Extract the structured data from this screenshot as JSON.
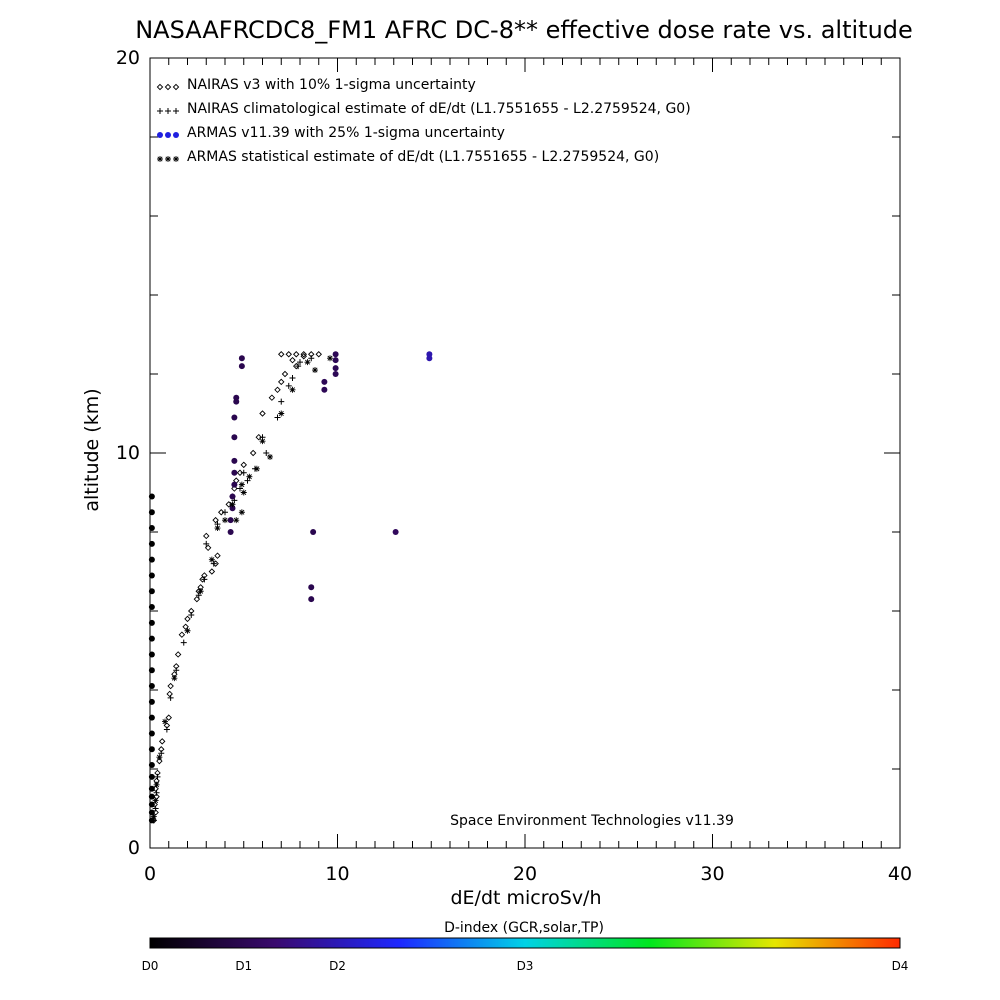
{
  "chart_data": {
    "type": "scatter",
    "title": "NASAAFRCDC8_FM1 AFRC DC-8** effective dose rate vs. altitude",
    "xlabel": "dE/dt microSv/h",
    "ylabel": "altitude (km)",
    "xlim": [
      0,
      40
    ],
    "ylim": [
      0,
      20
    ],
    "xticks": [
      "0",
      "10",
      "20",
      "30",
      "40"
    ],
    "yticks": [
      "0",
      "10",
      "20"
    ],
    "grid": false,
    "legend_position": "top-left",
    "credit": "Space Environment Technologies v11.39",
    "colorbar": {
      "title": "D-index (GCR,solar,TP)",
      "labels": [
        {
          "text": "D0",
          "pos": 0
        },
        {
          "text": "D1",
          "pos": 0.125
        },
        {
          "text": "D2",
          "pos": 0.25
        },
        {
          "text": "D3",
          "pos": 0.5
        },
        {
          "text": "D4",
          "pos": 1
        }
      ],
      "stops": [
        "#000000",
        "#3a0a6e",
        "#1e28ff",
        "#00d2e6",
        "#00e61e",
        "#e6e600",
        "#ff2a00"
      ]
    },
    "series": [
      {
        "name": "NAIRAS v3 with 10% 1-sigma uncertainty",
        "marker": "diamond",
        "color": "#000000",
        "points": [
          [
            0.2,
            0.7
          ],
          [
            0.3,
            0.9
          ],
          [
            0.25,
            1.1
          ],
          [
            0.35,
            1.3
          ],
          [
            0.3,
            1.5
          ],
          [
            0.35,
            1.7
          ],
          [
            0.4,
            1.9
          ],
          [
            0.5,
            2.2
          ],
          [
            0.6,
            2.5
          ],
          [
            0.65,
            2.7
          ],
          [
            0.9,
            3.1
          ],
          [
            1.0,
            3.3
          ],
          [
            1.05,
            3.9
          ],
          [
            1.1,
            4.1
          ],
          [
            1.3,
            4.4
          ],
          [
            1.4,
            4.6
          ],
          [
            1.5,
            4.9
          ],
          [
            1.7,
            5.4
          ],
          [
            1.9,
            5.6
          ],
          [
            2.0,
            5.8
          ],
          [
            2.2,
            6.0
          ],
          [
            2.5,
            6.3
          ],
          [
            2.6,
            6.5
          ],
          [
            2.7,
            6.6
          ],
          [
            2.8,
            6.8
          ],
          [
            2.9,
            6.9
          ],
          [
            3.3,
            7.0
          ],
          [
            3.5,
            7.2
          ],
          [
            3.6,
            7.4
          ],
          [
            3.1,
            7.6
          ],
          [
            3.0,
            7.9
          ],
          [
            3.5,
            8.3
          ],
          [
            3.8,
            8.5
          ],
          [
            4.2,
            8.7
          ],
          [
            4.4,
            8.9
          ],
          [
            4.5,
            9.1
          ],
          [
            4.6,
            9.3
          ],
          [
            4.8,
            9.5
          ],
          [
            5.0,
            9.7
          ],
          [
            5.5,
            10.0
          ],
          [
            5.8,
            10.4
          ],
          [
            6.0,
            11.0
          ],
          [
            6.5,
            11.4
          ],
          [
            6.8,
            11.6
          ],
          [
            7.0,
            11.8
          ],
          [
            7.2,
            12.0
          ],
          [
            7.8,
            12.2
          ],
          [
            7.6,
            12.35
          ],
          [
            8.2,
            12.45
          ],
          [
            7.0,
            12.5
          ],
          [
            7.4,
            12.5
          ],
          [
            7.8,
            12.5
          ],
          [
            8.2,
            12.5
          ],
          [
            8.6,
            12.5
          ],
          [
            9.0,
            12.5
          ]
        ]
      },
      {
        "name": "NAIRAS climatological estimate of dE/dt (L1.7551655 - L2.2759524, G0)",
        "marker": "plus",
        "color": "#000000",
        "points": [
          [
            0.2,
            0.7
          ],
          [
            0.3,
            1.0
          ],
          [
            0.35,
            1.4
          ],
          [
            0.4,
            1.8
          ],
          [
            0.6,
            2.4
          ],
          [
            0.9,
            3.0
          ],
          [
            1.1,
            3.8
          ],
          [
            1.4,
            4.5
          ],
          [
            1.8,
            5.2
          ],
          [
            2.2,
            5.9
          ],
          [
            2.6,
            6.4
          ],
          [
            2.9,
            6.8
          ],
          [
            3.4,
            7.2
          ],
          [
            3.0,
            7.7
          ],
          [
            3.6,
            8.2
          ],
          [
            4.0,
            8.5
          ],
          [
            4.5,
            8.8
          ],
          [
            4.8,
            9.1
          ],
          [
            5.2,
            9.3
          ],
          [
            5.0,
            9.5
          ],
          [
            5.6,
            9.6
          ],
          [
            6.2,
            10.0
          ],
          [
            6.0,
            10.4
          ],
          [
            6.8,
            10.9
          ],
          [
            7.0,
            11.3
          ],
          [
            7.4,
            11.7
          ],
          [
            7.6,
            11.9
          ],
          [
            7.9,
            12.2
          ],
          [
            8.0,
            12.3
          ],
          [
            8.6,
            12.4
          ]
        ]
      },
      {
        "name": "ARMAS v11.39 with 25% 1-sigma uncertainty",
        "marker": "filled-circle",
        "color": "#2020e0",
        "points": [
          {
            "x": 0.1,
            "y": 0.7,
            "d": 0
          },
          {
            "x": 0.1,
            "y": 0.9,
            "d": 0
          },
          {
            "x": 0.1,
            "y": 1.1,
            "d": 0
          },
          {
            "x": 0.1,
            "y": 1.3,
            "d": 0
          },
          {
            "x": 0.1,
            "y": 1.5,
            "d": 0
          },
          {
            "x": 0.1,
            "y": 1.8,
            "d": 0
          },
          {
            "x": 0.1,
            "y": 2.1,
            "d": 0
          },
          {
            "x": 0.1,
            "y": 2.5,
            "d": 0
          },
          {
            "x": 0.1,
            "y": 2.9,
            "d": 0
          },
          {
            "x": 0.1,
            "y": 3.3,
            "d": 0
          },
          {
            "x": 0.1,
            "y": 3.7,
            "d": 0
          },
          {
            "x": 0.1,
            "y": 4.1,
            "d": 0
          },
          {
            "x": 0.1,
            "y": 4.5,
            "d": 0
          },
          {
            "x": 0.1,
            "y": 4.9,
            "d": 0
          },
          {
            "x": 0.1,
            "y": 5.3,
            "d": 0
          },
          {
            "x": 0.1,
            "y": 5.7,
            "d": 0
          },
          {
            "x": 0.1,
            "y": 6.1,
            "d": 0
          },
          {
            "x": 0.1,
            "y": 6.5,
            "d": 0
          },
          {
            "x": 0.1,
            "y": 6.9,
            "d": 0
          },
          {
            "x": 0.1,
            "y": 7.3,
            "d": 0
          },
          {
            "x": 0.1,
            "y": 7.7,
            "d": 0
          },
          {
            "x": 0.1,
            "y": 8.1,
            "d": 0
          },
          {
            "x": 0.1,
            "y": 8.5,
            "d": 0
          },
          {
            "x": 0.1,
            "y": 8.9,
            "d": 0
          },
          {
            "x": 4.3,
            "y": 8.0,
            "d": 0.12
          },
          {
            "x": 4.3,
            "y": 8.3,
            "d": 0.12
          },
          {
            "x": 4.4,
            "y": 8.6,
            "d": 0.12
          },
          {
            "x": 4.4,
            "y": 8.9,
            "d": 0.12
          },
          {
            "x": 4.5,
            "y": 9.2,
            "d": 0.12
          },
          {
            "x": 4.5,
            "y": 9.5,
            "d": 0.12
          },
          {
            "x": 4.5,
            "y": 9.8,
            "d": 0.12
          },
          {
            "x": 4.5,
            "y": 10.4,
            "d": 0.12
          },
          {
            "x": 4.5,
            "y": 10.9,
            "d": 0.12
          },
          {
            "x": 4.6,
            "y": 11.3,
            "d": 0.12
          },
          {
            "x": 4.6,
            "y": 11.4,
            "d": 0.12
          },
          {
            "x": 4.9,
            "y": 12.2,
            "d": 0.12
          },
          {
            "x": 4.9,
            "y": 12.4,
            "d": 0.12
          },
          {
            "x": 8.6,
            "y": 6.3,
            "d": 0.12
          },
          {
            "x": 8.6,
            "y": 6.6,
            "d": 0.12
          },
          {
            "x": 8.7,
            "y": 8.0,
            "d": 0.12
          },
          {
            "x": 13.1,
            "y": 8.0,
            "d": 0.14
          },
          {
            "x": 9.3,
            "y": 11.6,
            "d": 0.13
          },
          {
            "x": 9.3,
            "y": 11.8,
            "d": 0.13
          },
          {
            "x": 9.9,
            "y": 12.0,
            "d": 0.13
          },
          {
            "x": 9.9,
            "y": 12.15,
            "d": 0.13
          },
          {
            "x": 9.9,
            "y": 12.35,
            "d": 0.13
          },
          {
            "x": 9.9,
            "y": 12.5,
            "d": 0.13
          },
          {
            "x": 14.9,
            "y": 12.4,
            "d": 0.24
          },
          {
            "x": 14.9,
            "y": 12.5,
            "d": 0.24
          }
        ]
      },
      {
        "name": "ARMAS statistical estimate of dE/dt (L1.7551655 - L2.2759524, G0)",
        "marker": "asterisk",
        "color": "#000000",
        "points": [
          [
            0.2,
            0.8
          ],
          [
            0.3,
            1.2
          ],
          [
            0.35,
            1.6
          ],
          [
            0.5,
            2.3
          ],
          [
            0.8,
            3.2
          ],
          [
            1.3,
            4.3
          ],
          [
            2.0,
            5.5
          ],
          [
            2.7,
            6.5
          ],
          [
            3.3,
            7.3
          ],
          [
            3.6,
            8.1
          ],
          [
            4.0,
            8.3
          ],
          [
            4.6,
            8.3
          ],
          [
            4.9,
            8.5
          ],
          [
            4.4,
            8.7
          ],
          [
            5.0,
            9.0
          ],
          [
            4.9,
            9.2
          ],
          [
            5.3,
            9.4
          ],
          [
            5.7,
            9.6
          ],
          [
            6.4,
            9.9
          ],
          [
            6.0,
            10.3
          ],
          [
            7.0,
            11.0
          ],
          [
            7.6,
            11.6
          ],
          [
            8.8,
            12.1
          ],
          [
            8.4,
            12.3
          ],
          [
            9.6,
            12.4
          ]
        ]
      }
    ]
  }
}
